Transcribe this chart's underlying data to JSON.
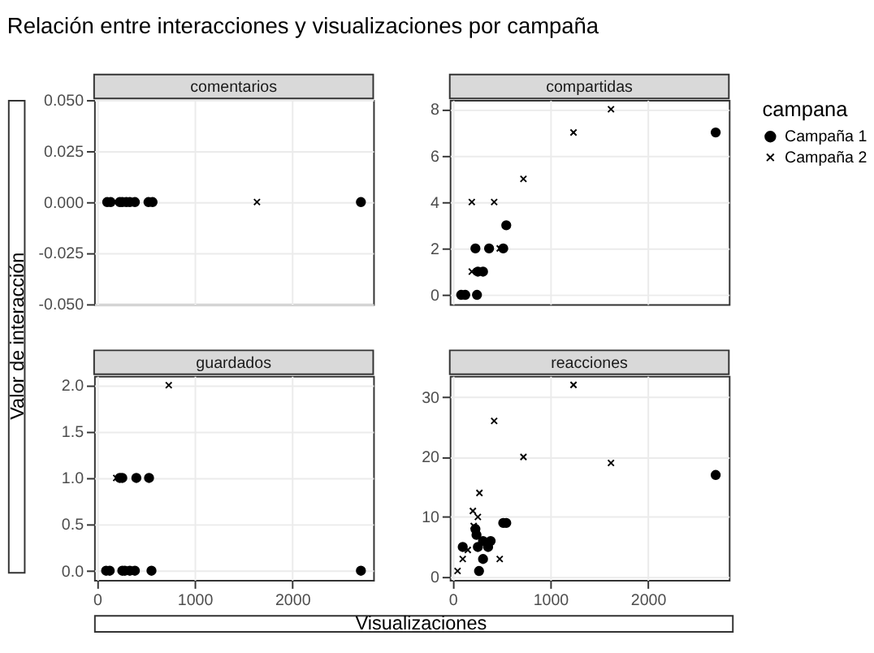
{
  "chart_data": [
    {
      "type": "scatter",
      "title": "comentarios",
      "annotations": [
        "Relación entre interacciones y visualizaciones por campaña"
      ],
      "ylabel": "Valor de interacción",
      "xlabel": "Visualizaciones",
      "legend_title": "campana",
      "legend": "right",
      "grid": true,
      "tick_labels": "y",
      "xlim": [
        -30,
        2830
      ],
      "xticks": [
        0,
        1000,
        2000
      ],
      "ylim": [
        -0.05,
        0.05
      ],
      "yticks": [
        {
          "value": -0.05,
          "label": "-0.050"
        },
        {
          "value": -0.025,
          "label": "-0.025"
        },
        {
          "value": 0,
          "label": "0.000"
        },
        {
          "value": 0.025,
          "label": "0.025"
        },
        {
          "value": 0.05,
          "label": "0.050"
        }
      ],
      "series": [
        {
          "name": "Campaña 1",
          "color": "#000000",
          "marker": "circle",
          "x": [
            104,
            140,
            233,
            259,
            300,
            336,
            388,
            527,
            569,
            2704
          ],
          "values": [
            0,
            0,
            0,
            0,
            0,
            0,
            0,
            0,
            0,
            0
          ]
        },
        {
          "name": "Campaña 2",
          "color": "#000000",
          "marker": "cross",
          "x": [
            1639
          ],
          "values": [
            0
          ]
        }
      ]
    },
    {
      "type": "scatter",
      "title": "compartidas",
      "grid": true,
      "tick_labels": "y",
      "xlim": [
        -30,
        2830
      ],
      "xticks": [
        0,
        1000,
        2000
      ],
      "ylim": [
        -0.4,
        8.4
      ],
      "yticks": [
        0,
        2,
        4,
        6,
        8
      ],
      "series": [
        {
          "name": "Campaña 1",
          "color": "#000000",
          "marker": "circle",
          "x": [
            87,
            129,
            249,
            258,
            311,
            233,
            373,
            518,
            549,
            2695
          ],
          "values": [
            0,
            0,
            0,
            1,
            1,
            2,
            2,
            2,
            3,
            7
          ]
        },
        {
          "name": "Campaña 2",
          "color": "#000000",
          "marker": "cross",
          "x": [
            196,
            425,
            725,
            1238,
            1622,
            196,
            482
          ],
          "values": [
            4,
            4,
            5,
            7,
            8,
            1,
            2
          ]
        }
      ]
    },
    {
      "type": "scatter",
      "title": "guardados",
      "grid": true,
      "xlim": [
        -30,
        2830
      ],
      "xticks": [
        0,
        1000,
        2000
      ],
      "ylim": [
        -0.1,
        2.1
      ],
      "yticks": [
        {
          "value": 0,
          "label": "0.0"
        },
        {
          "value": 0.5,
          "label": "0.5"
        },
        {
          "value": 1,
          "label": "1.0"
        },
        {
          "value": 1.5,
          "label": "1.5"
        },
        {
          "value": 2,
          "label": "2.0"
        }
      ],
      "series": [
        {
          "name": "Campaña 1",
          "color": "#000000",
          "marker": "circle",
          "x": [
            93,
            130,
            259,
            285,
            336,
            388,
            558,
            2704,
            233,
            259,
            403,
            533
          ],
          "values": [
            0,
            0,
            0,
            0,
            0,
            0,
            0,
            0,
            1,
            1,
            1,
            1
          ]
        },
        {
          "name": "Campaña 2",
          "color": "#000000",
          "marker": "cross",
          "x": [
            197,
            735
          ],
          "values": [
            1,
            2
          ]
        }
      ]
    },
    {
      "type": "scatter",
      "title": "reacciones",
      "grid": true,
      "xlim": [
        -30,
        2830
      ],
      "xticks": [
        0,
        1000,
        2000
      ],
      "ylim": [
        -0.5,
        33.5
      ],
      "yticks": [
        0,
        10,
        20,
        30
      ],
      "series": [
        {
          "name": "Campaña 1",
          "color": "#000000",
          "marker": "circle",
          "x": [
            103,
            270,
            311,
            233,
            244,
            258,
            311,
            363,
            389,
            518,
            549,
            2695
          ],
          "values": [
            5,
            1,
            3,
            8,
            7,
            5,
            6,
            5,
            6,
            9,
            9,
            17
          ]
        },
        {
          "name": "Campaña 2",
          "color": "#000000",
          "marker": "cross",
          "x": [
            1238,
            425,
            725,
            1622,
            274,
            207,
            258,
            215,
            482,
            50,
            103,
            155
          ],
          "values": [
            32,
            26,
            20,
            19,
            14,
            11,
            10,
            8.5,
            3,
            1,
            3,
            4.5
          ]
        }
      ]
    }
  ]
}
